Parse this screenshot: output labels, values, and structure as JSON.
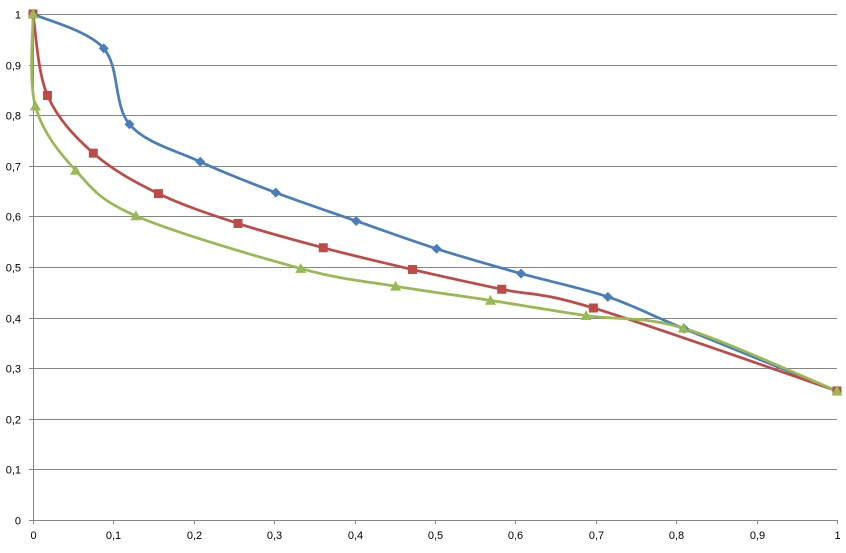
{
  "chart_data": {
    "type": "line",
    "title": "",
    "xlabel": "",
    "ylabel": "",
    "xlim": [
      0,
      1
    ],
    "ylim": [
      0,
      1
    ],
    "grid": "horizontal",
    "legend": "none",
    "x_ticks": [
      "0",
      "0,1",
      "0,2",
      "0,3",
      "0,4",
      "0,5",
      "0,6",
      "0,7",
      "0,8",
      "0,9",
      "1"
    ],
    "y_ticks": [
      "0",
      "0,1",
      "0,2",
      "0,3",
      "0,4",
      "0,5",
      "0,6",
      "0,7",
      "0,8",
      "0,9",
      "1"
    ],
    "series": [
      {
        "color": "#4a7ebb",
        "marker": "diamond",
        "x": [
          0,
          0.088,
          0.12,
          0.208,
          0.302,
          0.402,
          0.502,
          0.607,
          0.715,
          0.81,
          1
        ],
        "y": [
          1,
          0.932,
          0.782,
          0.708,
          0.647,
          0.591,
          0.536,
          0.487,
          0.441,
          0.378,
          0.255
        ]
      },
      {
        "color": "#be4b48",
        "marker": "square",
        "x": [
          0,
          0.018,
          0.075,
          0.156,
          0.255,
          0.361,
          0.472,
          0.583,
          0.697,
          1
        ],
        "y": [
          1,
          0.839,
          0.725,
          0.645,
          0.586,
          0.538,
          0.495,
          0.456,
          0.419,
          0.255
        ]
      },
      {
        "color": "#98b954",
        "marker": "triangle",
        "x": [
          0,
          0.003,
          0.053,
          0.128,
          0.333,
          0.451,
          0.569,
          0.688,
          0.809,
          1
        ],
        "y": [
          1,
          0.818,
          0.691,
          0.601,
          0.497,
          0.462,
          0.434,
          0.404,
          0.379,
          0.255
        ]
      }
    ]
  }
}
